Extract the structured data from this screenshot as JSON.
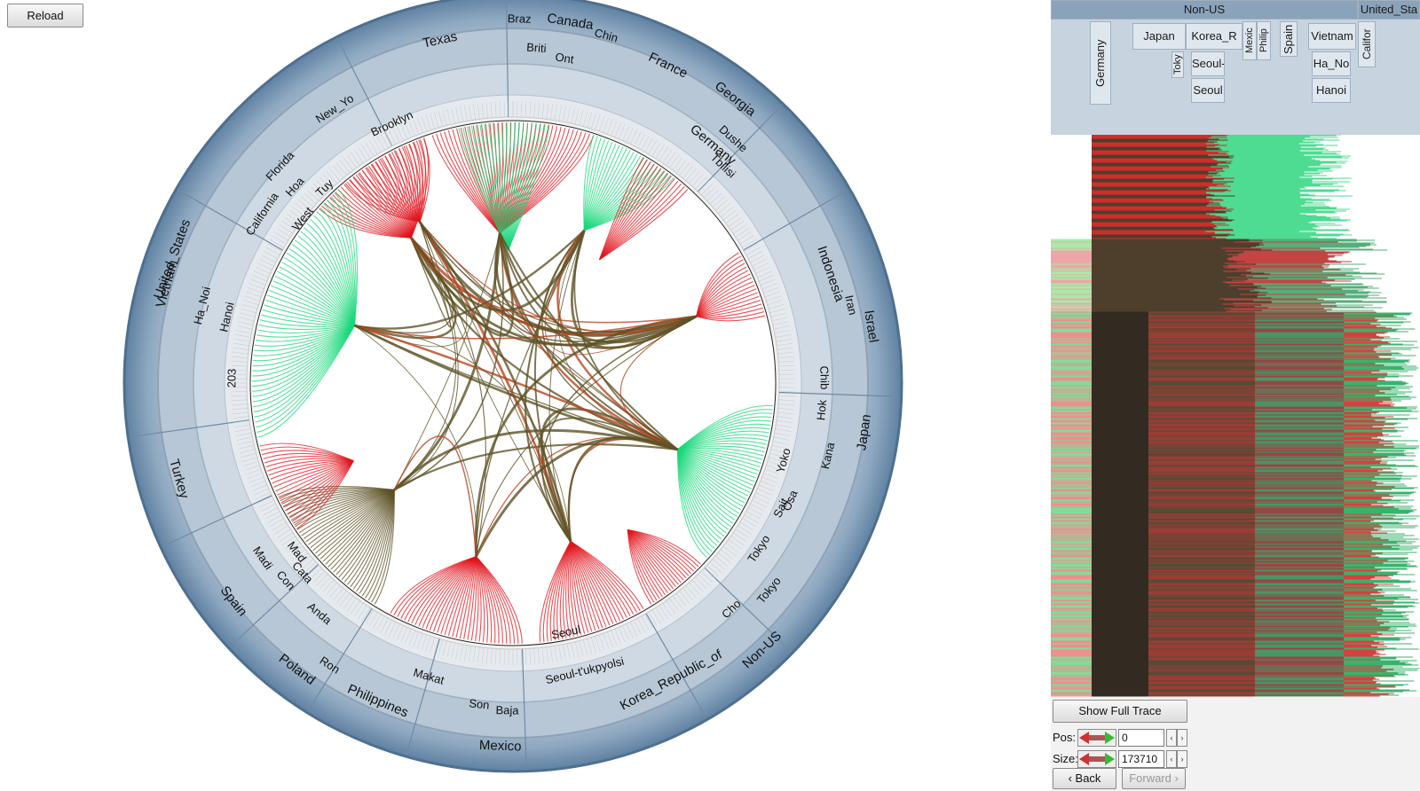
{
  "toolbar": {
    "reload_label": "Reload"
  },
  "radial": {
    "outer_labels": [
      {
        "text": "United_States",
        "a": -70,
        "r": 408
      },
      {
        "text": "Germany",
        "a": 40,
        "r": 350
      },
      {
        "text": "Japan",
        "a": 98,
        "r": 400
      },
      {
        "text": "Non-US",
        "a": 137,
        "r": 412
      },
      {
        "text": "Korea_Republic_of",
        "a": 152,
        "r": 380
      },
      {
        "text": "Mexico",
        "a": 182,
        "r": 410
      },
      {
        "text": "Philippines",
        "a": 203,
        "r": 390
      },
      {
        "text": "Poland",
        "a": 217,
        "r": 405
      },
      {
        "text": "Spain",
        "a": 232,
        "r": 400
      },
      {
        "text": "Turkey",
        "a": 254,
        "r": 392
      },
      {
        "text": "Vietnam",
        "a": 286,
        "r": 405
      },
      {
        "text": "Texas",
        "a": -12,
        "r": 395
      },
      {
        "text": "Canada",
        "a": 9,
        "r": 412
      },
      {
        "text": "France",
        "a": 26,
        "r": 398
      },
      {
        "text": "Georgia",
        "a": 38,
        "r": 406
      },
      {
        "text": "Indonesia",
        "a": 71,
        "r": 378
      },
      {
        "text": "Israel",
        "a": 81,
        "r": 408
      }
    ],
    "mid_labels": [
      {
        "text": "California",
        "a": -56,
        "r": 340
      },
      {
        "text": "Florida",
        "a": -47,
        "r": 358
      },
      {
        "text": "New_Yo",
        "a": -33,
        "r": 368
      },
      {
        "text": "Brooklyn",
        "a": -25,
        "r": 322
      },
      {
        "text": "West",
        "a": -52,
        "r": 300
      },
      {
        "text": "Chin",
        "a": 15,
        "r": 405
      },
      {
        "text": "Ont",
        "a": 9,
        "r": 370
      },
      {
        "text": "Briti",
        "a": 4,
        "r": 378
      },
      {
        "text": "Braz",
        "a": 1,
        "r": 410
      },
      {
        "text": "Dushe",
        "a": 42,
        "r": 370
      },
      {
        "text": "Tbilisi",
        "a": 44,
        "r": 340
      },
      {
        "text": "Iran",
        "a": 77,
        "r": 390
      },
      {
        "text": "Chib",
        "a": 89,
        "r": 350
      },
      {
        "text": "Hok",
        "a": 95,
        "r": 350
      },
      {
        "text": "Kana",
        "a": 103,
        "r": 365
      },
      {
        "text": "Yoko",
        "a": 106,
        "r": 318
      },
      {
        "text": "Osa",
        "a": 113,
        "r": 340
      },
      {
        "text": "Sait",
        "a": 115,
        "r": 334
      },
      {
        "text": "Tokyo",
        "a": 124,
        "r": 335
      },
      {
        "text": "Tokyo",
        "a": 129,
        "r": 372
      },
      {
        "text": "Cho",
        "a": 136,
        "r": 355
      },
      {
        "text": "Seoul",
        "a": 168,
        "r": 288
      },
      {
        "text": "Seoul-t'ukpyolsi",
        "a": 166,
        "r": 335
      },
      {
        "text": "Baja",
        "a": 181,
        "r": 370
      },
      {
        "text": "Son",
        "a": 186,
        "r": 365
      },
      {
        "text": "Makat",
        "a": 196,
        "r": 345
      },
      {
        "text": "Ron",
        "a": 213,
        "r": 380
      },
      {
        "text": "Anda",
        "a": 220,
        "r": 340
      },
      {
        "text": "Cata",
        "a": 228,
        "r": 320
      },
      {
        "text": "Con",
        "a": 229,
        "r": 340
      },
      {
        "text": "Madi",
        "a": 235,
        "r": 345
      },
      {
        "text": "Mad",
        "a": 232,
        "r": 310
      },
      {
        "text": "Ha_Noi",
        "a": 284,
        "r": 360
      },
      {
        "text": "Hanoi",
        "a": 283,
        "r": 330
      },
      {
        "text": "203",
        "a": 271,
        "r": 316
      },
      {
        "text": "Hoa",
        "a": 312,
        "r": 330
      },
      {
        "text": "Tuy",
        "a": 316,
        "r": 305
      }
    ]
  },
  "trace": {
    "header": {
      "level0": [
        {
          "text": "Non-US"
        },
        {
          "text": "United_Sta"
        }
      ],
      "level1": [
        "Germany",
        "Japan",
        "Korea_R",
        "Mexic",
        "Philip",
        "Spain",
        "Vietnam",
        "Califor"
      ],
      "level2": [
        "Toky",
        "Seoul-",
        "Ha_No"
      ],
      "level3": [
        "Seoul",
        "Hanoi"
      ]
    },
    "show_full_label": "Show Full Trace",
    "pos": {
      "label": "Pos:",
      "value": "0"
    },
    "size": {
      "label": "Size:",
      "value": "173710"
    },
    "back_label": "‹ Back",
    "forward_label": "Forward ›"
  },
  "colors": {
    "ring_outer": "#7d9bb8",
    "ring_mid": "#b9c9d8",
    "ring_inner": "#e4e9ee",
    "edge_red": "#e0141c",
    "edge_green": "#18d87a",
    "edge_dark": "#5e5226"
  }
}
